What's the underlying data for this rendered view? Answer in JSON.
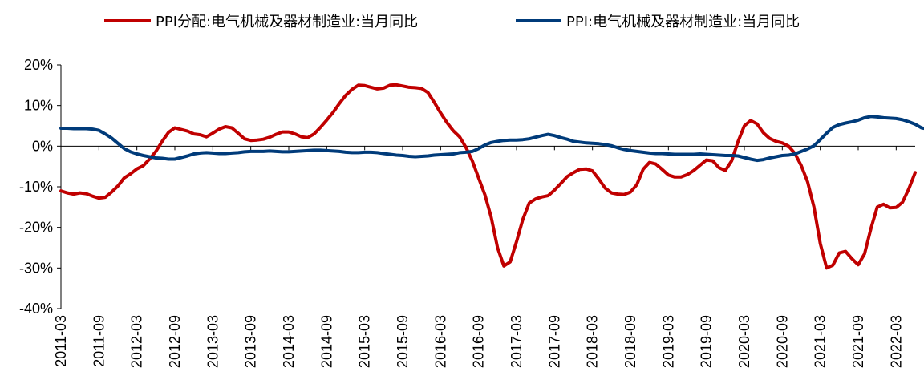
{
  "chart_data": {
    "type": "line",
    "title": "",
    "xlabel": "",
    "ylabel": "",
    "ylim": [
      -40,
      20
    ],
    "y_ticks": [
      20,
      10,
      0,
      -10,
      -20,
      -30,
      -40
    ],
    "y_tick_labels": [
      "20%",
      "10%",
      "0%",
      "-10%",
      "-20%",
      "-30%",
      "-40%"
    ],
    "x_tick_labels": [
      "2011-03",
      "2011-09",
      "2012-03",
      "2012-09",
      "2013-03",
      "2013-09",
      "2014-03",
      "2014-09",
      "2015-03",
      "2015-09",
      "2016-03",
      "2016-09",
      "2017-03",
      "2017-09",
      "2018-03",
      "2018-09",
      "2019-03",
      "2019-09",
      "2020-03",
      "2020-09",
      "2021-03",
      "2021-09",
      "2022-03"
    ],
    "x_start": "2011-03",
    "grid": false,
    "legend_position": "top",
    "series": [
      {
        "name": "PPI分配:电气机械及器材制造业:当月同比",
        "color": "#c00000",
        "values": [
          -11,
          -11.5,
          -11.8,
          -11.5,
          -11.7,
          -12.3,
          -12.8,
          -12.6,
          -11.3,
          -9.8,
          -7.8,
          -6.8,
          -5.6,
          -4.8,
          -3.2,
          -1.3,
          1.2,
          3.4,
          4.5,
          4.1,
          3.7,
          3,
          2.8,
          2.3,
          3.2,
          4.2,
          4.8,
          4.5,
          3.2,
          1.8,
          1.4,
          1.5,
          1.7,
          2.2,
          2.9,
          3.5,
          3.5,
          3,
          2.3,
          2.1,
          3,
          4.6,
          6.4,
          8.3,
          10.5,
          12.5,
          14,
          15,
          14.9,
          14.5,
          14.1,
          14.3,
          15,
          15.1,
          14.8,
          14.5,
          14.4,
          14.2,
          13.2,
          10.8,
          8.2,
          5.8,
          3.8,
          2.3,
          -0.3,
          -3.6,
          -7.8,
          -12,
          -17.5,
          -25,
          -29.5,
          -28.5,
          -23.5,
          -18,
          -14,
          -13,
          -12.5,
          -12.2,
          -10.8,
          -9.2,
          -7.5,
          -6.5,
          -5.7,
          -5.6,
          -6.1,
          -8.1,
          -10.3,
          -11.5,
          -11.8,
          -11.9,
          -11.3,
          -9.5,
          -5.7,
          -4,
          -4.4,
          -5.7,
          -7.1,
          -7.6,
          -7.6,
          -7,
          -6,
          -4.7,
          -3.4,
          -3.6,
          -5.3,
          -6,
          -3.6,
          1.1,
          5,
          6.3,
          5.5,
          3.3,
          1.9,
          1.2,
          0.8,
          0,
          -1.8,
          -4.8,
          -8.8,
          -15,
          -24,
          -30,
          -29.3,
          -26.3,
          -25.9,
          -27.7,
          -29.2,
          -26.5,
          -20.3,
          -15,
          -14.3,
          -15.2,
          -15.1,
          -13.8,
          -10.5,
          -6.5
        ]
      },
      {
        "name": "PPI:电气机械及器材制造业:当月同比",
        "color": "#003b7a",
        "values": [
          4.4,
          4.4,
          4.3,
          4.3,
          4.3,
          4.2,
          3.9,
          3,
          2,
          0.7,
          -0.6,
          -1.4,
          -1.9,
          -2.3,
          -2.6,
          -2.9,
          -3,
          -3.2,
          -3.2,
          -2.8,
          -2.4,
          -1.9,
          -1.7,
          -1.6,
          -1.7,
          -1.8,
          -1.8,
          -1.7,
          -1.6,
          -1.4,
          -1.3,
          -1.3,
          -1.3,
          -1.2,
          -1.3,
          -1.4,
          -1.4,
          -1.3,
          -1.2,
          -1.1,
          -1,
          -1,
          -1.1,
          -1.2,
          -1.3,
          -1.5,
          -1.6,
          -1.6,
          -1.5,
          -1.5,
          -1.6,
          -1.8,
          -2,
          -2.2,
          -2.3,
          -2.5,
          -2.6,
          -2.5,
          -2.4,
          -2.2,
          -2.1,
          -2,
          -1.9,
          -1.6,
          -1.5,
          -1.3,
          -0.6,
          0.3,
          0.9,
          1.2,
          1.4,
          1.5,
          1.5,
          1.6,
          1.8,
          2.2,
          2.6,
          2.9,
          2.6,
          2.1,
          1.7,
          1.2,
          1,
          0.8,
          0.7,
          0.6,
          0.4,
          0.1,
          -0.4,
          -0.8,
          -1.1,
          -1.3,
          -1.5,
          -1.7,
          -1.8,
          -1.8,
          -1.9,
          -2,
          -2,
          -2,
          -2,
          -1.9,
          -2,
          -2.1,
          -2.2,
          -2.3,
          -2.3,
          -2.4,
          -2.8,
          -3.2,
          -3.5,
          -3.3,
          -2.9,
          -2.6,
          -2.3,
          -2.2,
          -1.9,
          -1.3,
          -0.7,
          0.1,
          1.6,
          3.2,
          4.6,
          5.3,
          5.7,
          6,
          6.4,
          7,
          7.3,
          7.2,
          7,
          6.9,
          6.8,
          6.5,
          6,
          5.4,
          4.5,
          4.2
        ]
      }
    ]
  }
}
